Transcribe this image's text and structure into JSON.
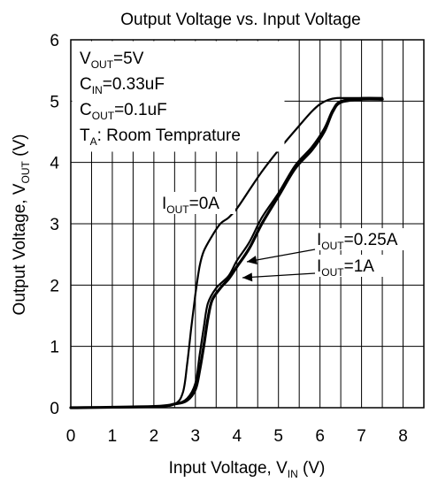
{
  "chart_data": {
    "type": "line",
    "title": "Output Voltage vs. Input Voltage",
    "xlabel": {
      "main": "Input Voltage, V",
      "sub": "IN",
      "tail": " (V)"
    },
    "ylabel": {
      "main": "Output Voltage, V",
      "sub": "OUT",
      "tail": " (V)"
    },
    "xlim": [
      0,
      8.5
    ],
    "ylim": [
      0,
      6
    ],
    "grid": true,
    "x_ticks": [
      "0",
      "1",
      "2",
      "3",
      "4",
      "5",
      "6",
      "7",
      "8"
    ],
    "y_ticks": [
      "0",
      "1",
      "2",
      "3",
      "4",
      "5",
      "6"
    ],
    "conditions": [
      {
        "main": "V",
        "sub": "OUT",
        "tail": "=5V"
      },
      {
        "main": "C",
        "sub": "IN",
        "tail": "=0.33uF"
      },
      {
        "main": "C",
        "sub": "OUT",
        "tail": "=0.1uF"
      },
      {
        "main": "T",
        "sub": "A",
        "tail": ": Room Temprature"
      }
    ],
    "series": [
      {
        "name": "IOUT=0A",
        "label": {
          "main": "I",
          "sub": "OUT",
          "tail": "=0A"
        },
        "stroke_width": 2.2,
        "x": [
          0,
          2.0,
          2.5,
          2.7,
          2.8,
          2.9,
          3.0,
          3.1,
          3.2,
          3.4,
          3.6,
          3.8,
          4.0,
          4.3,
          4.6,
          5.0,
          5.5,
          5.8,
          6.0,
          6.2,
          6.4,
          6.6,
          7.0,
          7.5
        ],
        "y": [
          0,
          0.02,
          0.06,
          0.25,
          0.7,
          1.3,
          1.85,
          2.3,
          2.55,
          2.8,
          3.0,
          3.1,
          3.25,
          3.55,
          3.85,
          4.2,
          4.6,
          4.83,
          4.95,
          5.02,
          5.05,
          5.05,
          5.05,
          5.05
        ]
      },
      {
        "name": "IOUT=0.25A",
        "label": {
          "main": "I",
          "sub": "OUT",
          "tail": "=0.25A"
        },
        "stroke_width": 2.2,
        "x": [
          0,
          2.0,
          2.5,
          2.8,
          3.0,
          3.1,
          3.2,
          3.3,
          3.5,
          3.8,
          4.0,
          4.3,
          4.6,
          5.0,
          5.4,
          5.8,
          6.1,
          6.3,
          6.5,
          7.0,
          7.5
        ],
        "y": [
          0,
          0.02,
          0.06,
          0.15,
          0.4,
          0.85,
          1.3,
          1.7,
          1.95,
          2.15,
          2.4,
          2.7,
          3.1,
          3.5,
          3.95,
          4.25,
          4.55,
          4.85,
          5.0,
          5.05,
          5.05
        ]
      },
      {
        "name": "IOUT=1A",
        "label": {
          "main": "I",
          "sub": "OUT",
          "tail": "=1A"
        },
        "stroke_width": 3.2,
        "x": [
          0,
          2.0,
          2.5,
          2.8,
          3.0,
          3.1,
          3.2,
          3.3,
          3.4,
          3.6,
          3.8,
          4.0,
          4.3,
          4.6,
          5.0,
          5.4,
          5.8,
          6.1,
          6.3,
          6.5,
          7.0,
          7.5
        ],
        "y": [
          0,
          0.02,
          0.06,
          0.12,
          0.3,
          0.6,
          1.0,
          1.45,
          1.75,
          1.95,
          2.1,
          2.3,
          2.6,
          3.0,
          3.45,
          3.9,
          4.2,
          4.5,
          4.82,
          4.98,
          5.03,
          5.03
        ]
      }
    ]
  }
}
